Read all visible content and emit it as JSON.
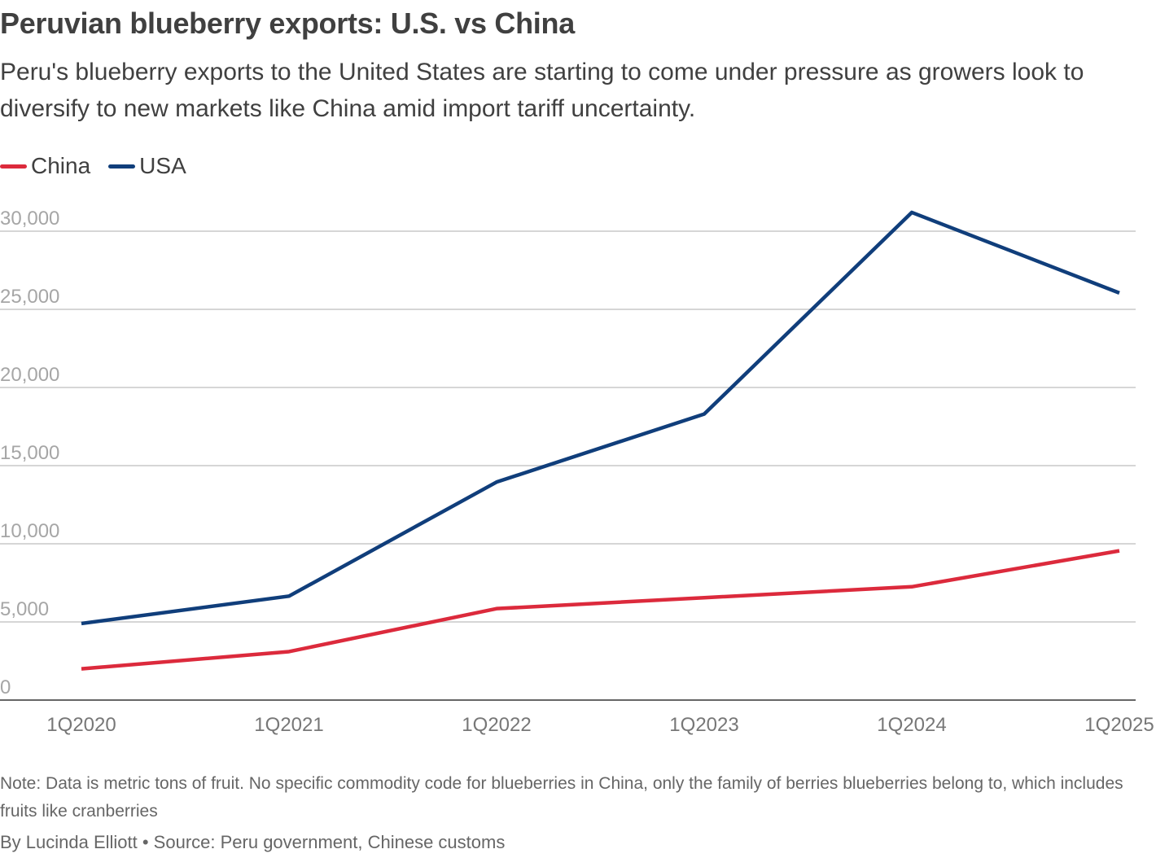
{
  "title": "Peruvian blueberry exports: U.S. vs China",
  "subtitle": "Peru's blueberry exports to the United States are starting to come under pressure as growers look to diversify to new markets like China amid import tariff uncertainty.",
  "chart_data": {
    "type": "line",
    "categories": [
      "1Q2020",
      "1Q2021",
      "1Q2022",
      "1Q2023",
      "1Q2024",
      "1Q2025"
    ],
    "series": [
      {
        "name": "China",
        "color": "#dc2a3c",
        "values": [
          2000,
          3100,
          5850,
          6550,
          7250,
          9550
        ]
      },
      {
        "name": "USA",
        "color": "#103e7b",
        "values": [
          4900,
          6650,
          13950,
          18300,
          31200,
          26050
        ]
      }
    ],
    "y_ticks": [
      0,
      5000,
      10000,
      15000,
      20000,
      25000,
      30000
    ],
    "y_tick_labels": [
      "0",
      "5,000",
      "10,000",
      "15,000",
      "20,000",
      "25,000",
      "30,000"
    ],
    "ylim": [
      0,
      30000
    ],
    "grid": true,
    "legend_position": "top-left",
    "xlabel": "",
    "ylabel": ""
  },
  "footer": {
    "note": "Note: Data is metric tons of fruit. No specific commodity code for blueberries in China, only the family of berries blueberries belong to, which includes fruits like cranberries",
    "byline": "By Lucinda Elliott • Source: Peru government, Chinese customs"
  },
  "colors": {
    "gridline": "#c8c8c8",
    "axis": "#333333",
    "tick_label": "#a6a6a6",
    "x_tick_label": "#777777"
  }
}
